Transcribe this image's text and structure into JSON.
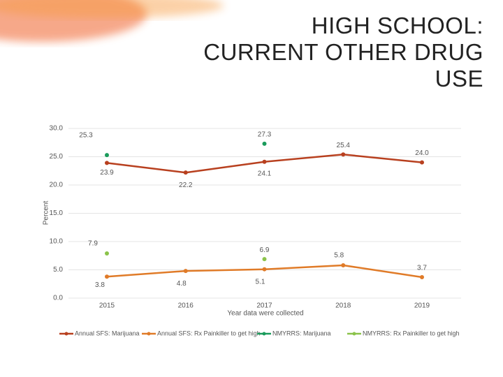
{
  "chart_data": {
    "type": "line",
    "title": [
      "HIGH SCHOOL:",
      "CURRENT OTHER DRUG",
      "USE"
    ],
    "xlabel": "Year data were collected",
    "ylabel": "Percent",
    "categories": [
      "2015",
      "2016",
      "2017",
      "2018",
      "2019"
    ],
    "ylim": [
      0,
      30
    ],
    "yticks": [
      {
        "value": 0,
        "label": "0.0"
      },
      {
        "value": 5,
        "label": "5.0"
      },
      {
        "value": 10,
        "label": "10.0"
      },
      {
        "value": 15,
        "label": "15.0"
      },
      {
        "value": 20,
        "label": "20.0"
      },
      {
        "value": 25,
        "label": "25.0"
      },
      {
        "value": 30,
        "label": "30.0"
      }
    ],
    "grid": true,
    "legend": "bottom",
    "series": [
      {
        "name": "Annual SFS: Marijuana",
        "color": "#b8401f",
        "values": [
          23.9,
          22.2,
          24.1,
          25.4,
          24.0
        ],
        "value_labels": [
          "23.9",
          "22.2",
          "24.1",
          "25.4",
          "24.0"
        ]
      },
      {
        "name": "Annual SFS: Rx Painkiller to get high",
        "color": "#e07b28",
        "values": [
          3.8,
          4.8,
          5.1,
          5.8,
          3.7
        ],
        "value_labels": [
          "3.8",
          "4.8",
          "5.1",
          "5.8",
          "3.7"
        ]
      },
      {
        "name": "NMYRRS: Marijuana",
        "color": "#1a9b5b",
        "values": [
          25.3,
          null,
          27.3,
          null,
          null
        ],
        "value_labels": [
          "25.3",
          null,
          "27.3",
          null,
          null
        ]
      },
      {
        "name": "NMYRRS: Rx Painkiller to get high",
        "color": "#8bc34a",
        "values": [
          7.9,
          null,
          6.9,
          null,
          null
        ],
        "value_labels": [
          "7.9",
          null,
          "6.9",
          null,
          null
        ]
      }
    ]
  }
}
